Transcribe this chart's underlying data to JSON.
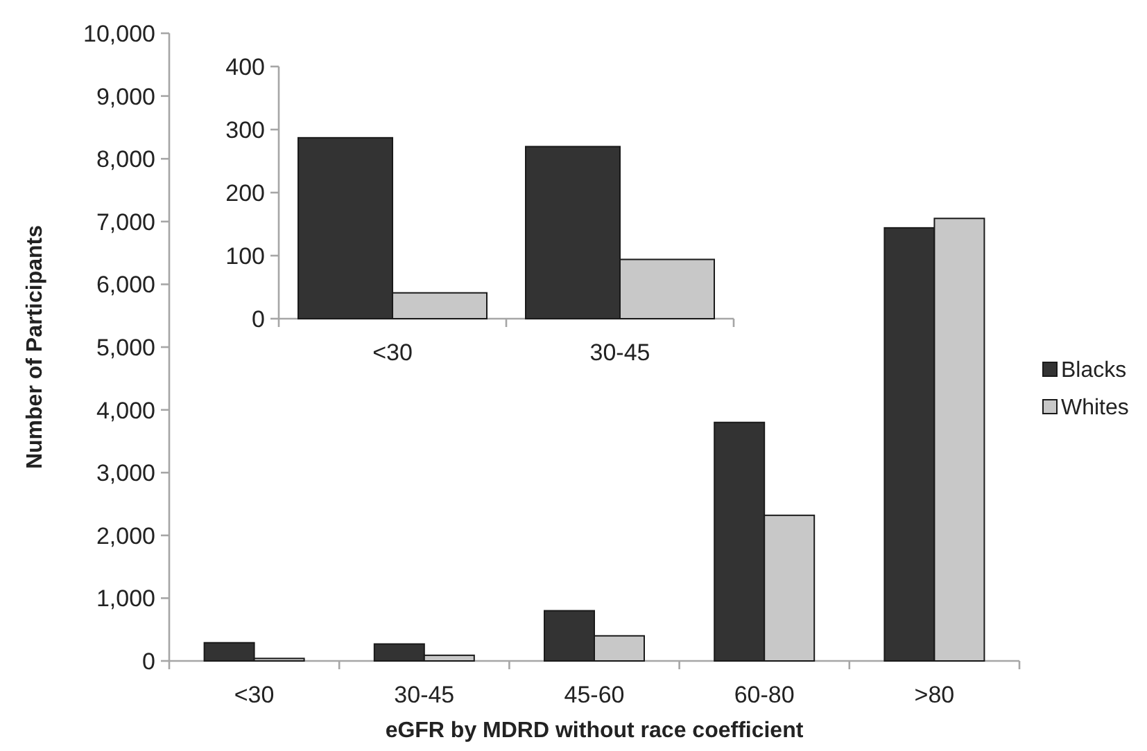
{
  "chart_data": [
    {
      "type": "bar",
      "xlabel": "eGFR by MDRD without race coefficient",
      "ylabel": "Number of Participants",
      "categories": [
        "<30",
        "30-45",
        "45-60",
        "60-80",
        ">80"
      ],
      "series": [
        {
          "name": "Blacks",
          "color": "#333333",
          "values": [
            290,
            270,
            800,
            3800,
            6900
          ]
        },
        {
          "name": "Whites",
          "color": "#c8c8c8",
          "values": [
            40,
            90,
            400,
            2320,
            7050
          ]
        }
      ],
      "ylim": [
        0,
        10000
      ],
      "yticks": [
        0,
        {
          "value": 1000,
          "label": "1,000"
        },
        {
          "value": 2000,
          "label": "2,000"
        },
        {
          "value": 3000,
          "label": "3,000"
        },
        {
          "value": 4000,
          "label": "4,000"
        },
        {
          "value": 5000,
          "label": "5,000"
        },
        {
          "value": 6000,
          "label": "6,000"
        },
        {
          "value": 7000,
          "label": "7,000"
        },
        {
          "value": 8000,
          "label": "8,000"
        },
        {
          "value": 9000,
          "label": "9,000"
        },
        {
          "value": 10000,
          "label": "10,000"
        }
      ],
      "grid": false,
      "legend": "right"
    },
    {
      "type": "bar",
      "categories": [
        "<30",
        "30-45"
      ],
      "series": [
        {
          "color": "#333333",
          "values": [
            287,
            273
          ]
        },
        {
          "color": "#c8c8c8",
          "values": [
            41,
            94
          ]
        }
      ],
      "ylim": [
        0,
        400
      ],
      "yticks": [
        0,
        100,
        200,
        300,
        400
      ],
      "grid": false,
      "legend": false
    }
  ]
}
